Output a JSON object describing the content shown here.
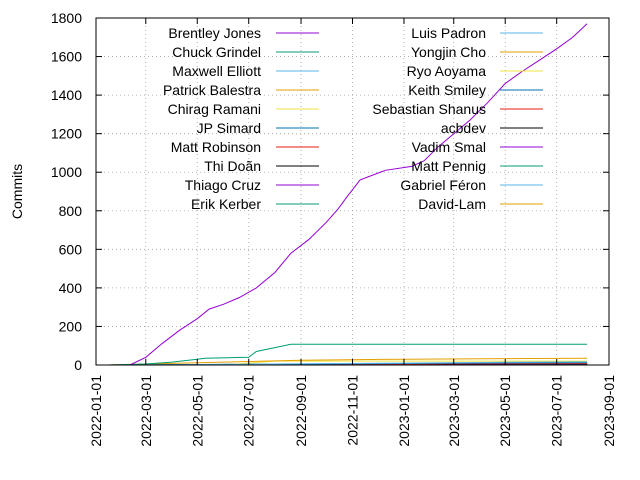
{
  "chart_data": {
    "type": "line",
    "title": "",
    "xlabel": "",
    "ylabel": "Commits",
    "x_type": "date",
    "xlim": [
      "2022-01-01",
      "2023-09-01"
    ],
    "ylim": [
      0,
      1800
    ],
    "grid": true,
    "legend_position": "top-left, two columns",
    "x_ticks": [
      "2022-01-01",
      "2022-03-01",
      "2022-05-01",
      "2022-07-01",
      "2022-09-01",
      "2022-11-01",
      "2023-01-01",
      "2023-03-01",
      "2023-05-01",
      "2023-07-01",
      "2023-09-01"
    ],
    "y_ticks": [
      0,
      200,
      400,
      600,
      800,
      1000,
      1200,
      1400,
      1600,
      1800
    ],
    "series": [
      {
        "name": "Brentley Jones",
        "color": "#9400d3",
        "x": [
          "2022-02-10",
          "2022-03-01",
          "2022-03-20",
          "2022-04-10",
          "2022-05-01",
          "2022-05-15",
          "2022-06-01",
          "2022-06-20",
          "2022-07-10",
          "2022-08-01",
          "2022-08-20",
          "2022-09-10",
          "2022-10-01",
          "2022-10-15",
          "2022-10-25",
          "2022-11-10",
          "2022-12-10",
          "2023-01-10",
          "2023-01-25",
          "2023-02-10",
          "2023-03-01",
          "2023-03-20",
          "2023-04-10",
          "2023-05-01",
          "2023-05-20",
          "2023-06-10",
          "2023-07-01",
          "2023-07-20",
          "2023-08-06"
        ],
        "values": [
          0,
          40,
          110,
          180,
          240,
          290,
          315,
          350,
          400,
          480,
          580,
          650,
          740,
          810,
          870,
          960,
          1010,
          1030,
          1060,
          1130,
          1200,
          1270,
          1360,
          1460,
          1520,
          1580,
          1640,
          1700,
          1770
        ]
      },
      {
        "name": "Chuck Grindel",
        "color": "#009e73",
        "x": [
          "2022-01-15",
          "2022-03-01",
          "2022-04-01",
          "2022-05-01",
          "2022-05-10",
          "2022-07-01",
          "2022-07-10",
          "2022-08-01",
          "2022-08-20",
          "2023-08-06"
        ],
        "values": [
          0,
          5,
          15,
          30,
          35,
          40,
          70,
          90,
          108,
          108
        ]
      },
      {
        "name": "Maxwell Elliott",
        "color": "#56b4e9",
        "x": [
          "2022-01-15",
          "2022-05-01",
          "2022-09-01",
          "2023-01-01",
          "2023-05-01",
          "2023-08-06"
        ],
        "values": [
          0,
          2,
          6,
          10,
          14,
          16
        ]
      },
      {
        "name": "Patrick Balestra",
        "color": "#e69f00",
        "x": [
          "2022-01-15",
          "2022-03-01",
          "2022-06-01",
          "2022-09-01",
          "2023-01-01",
          "2023-05-01",
          "2023-08-06"
        ],
        "values": [
          0,
          5,
          15,
          25,
          30,
          33,
          35
        ]
      },
      {
        "name": "Chirag Ramani",
        "color": "#f0e442",
        "x": [
          "2022-01-15",
          "2022-06-01",
          "2022-08-01",
          "2023-08-06"
        ],
        "values": [
          0,
          0,
          20,
          20
        ]
      },
      {
        "name": "JP Simard",
        "color": "#0072b2",
        "x": [
          "2022-01-15",
          "2022-06-01",
          "2023-01-01",
          "2023-08-06"
        ],
        "values": [
          0,
          3,
          8,
          12
        ]
      },
      {
        "name": "Matt Robinson",
        "color": "#e51e10",
        "x": [
          "2022-01-15",
          "2022-09-01",
          "2023-03-01",
          "2023-08-06"
        ],
        "values": [
          0,
          2,
          6,
          8
        ]
      },
      {
        "name": "Thi Doãn",
        "color": "#000000",
        "x": [
          "2022-01-15",
          "2022-10-01",
          "2023-08-06"
        ],
        "values": [
          0,
          5,
          7
        ]
      },
      {
        "name": "Thiago Cruz",
        "color": "#9400d3",
        "x": [
          "2022-01-15",
          "2022-11-01",
          "2023-08-06"
        ],
        "values": [
          0,
          4,
          6
        ]
      },
      {
        "name": "Erik Kerber",
        "color": "#009e73",
        "x": [
          "2022-01-15",
          "2022-08-01",
          "2023-08-06"
        ],
        "values": [
          0,
          4,
          5
        ]
      },
      {
        "name": "Luis Padron",
        "color": "#56b4e9",
        "x": [
          "2022-01-15",
          "2023-04-01",
          "2023-08-06"
        ],
        "values": [
          0,
          3,
          5
        ]
      },
      {
        "name": "Yongjin Cho",
        "color": "#e69f00",
        "x": [
          "2022-01-15",
          "2023-02-01",
          "2023-08-06"
        ],
        "values": [
          0,
          3,
          4
        ]
      },
      {
        "name": "Ryo Aoyama",
        "color": "#f0e442",
        "x": [
          "2022-01-15",
          "2022-12-01",
          "2023-08-06"
        ],
        "values": [
          0,
          3,
          4
        ]
      },
      {
        "name": "Keith Smiley",
        "color": "#0072b2",
        "x": [
          "2022-01-15",
          "2023-05-01",
          "2023-08-06"
        ],
        "values": [
          0,
          2,
          4
        ]
      },
      {
        "name": "Sebastian Shanus",
        "color": "#e51e10",
        "x": [
          "2022-01-15",
          "2023-07-01",
          "2023-08-06"
        ],
        "values": [
          0,
          2,
          3
        ]
      },
      {
        "name": "acbdev",
        "color": "#000000",
        "x": [
          "2022-01-15",
          "2023-03-01",
          "2023-08-06"
        ],
        "values": [
          0,
          2,
          3
        ]
      },
      {
        "name": "Vadim Smal",
        "color": "#9400d3",
        "x": [
          "2022-01-15",
          "2023-06-01",
          "2023-08-06"
        ],
        "values": [
          0,
          2,
          3
        ]
      },
      {
        "name": "Matt Pennig",
        "color": "#009e73",
        "x": [
          "2022-01-15",
          "2022-10-01",
          "2023-08-06"
        ],
        "values": [
          0,
          2,
          2
        ]
      },
      {
        "name": "Gabriel Féron",
        "color": "#56b4e9",
        "x": [
          "2022-01-15",
          "2023-01-01",
          "2023-08-06"
        ],
        "values": [
          0,
          1,
          2
        ]
      },
      {
        "name": "David-Lam",
        "color": "#e69f00",
        "x": [
          "2022-01-15",
          "2023-07-15",
          "2023-08-06"
        ],
        "values": [
          0,
          1,
          2
        ]
      }
    ]
  }
}
